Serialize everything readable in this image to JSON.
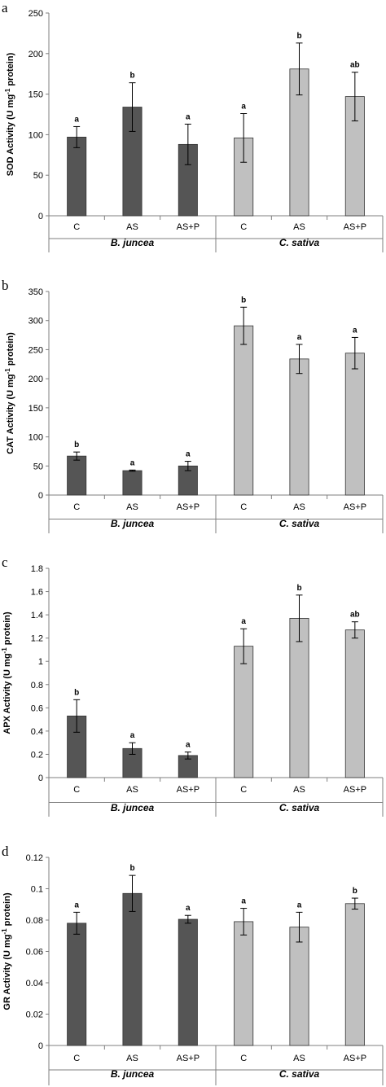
{
  "chart_data": [
    {
      "type": "bar",
      "panel": "a",
      "ylabel": "SOD Activity (U mg",
      "ylabel_sup": "-1",
      "ylabel_end": " protein)",
      "ylim": [
        0,
        250
      ],
      "yticks": [
        "0",
        "50",
        "100",
        "150",
        "200",
        "250"
      ],
      "groups": [
        "B. juncea",
        "C. sativa"
      ],
      "categories": [
        "C",
        "AS",
        "AS+P",
        "C",
        "AS",
        "AS+P"
      ],
      "values": [
        97,
        134,
        88,
        96,
        181,
        147
      ],
      "errors": [
        13,
        30,
        25,
        30,
        32,
        30
      ],
      "significance": [
        "a",
        "b",
        "a",
        "a",
        "b",
        "ab"
      ],
      "colors": [
        "#555555",
        "#555555",
        "#555555",
        "#c0c0c0",
        "#c0c0c0",
        "#c0c0c0"
      ]
    },
    {
      "type": "bar",
      "panel": "b",
      "ylabel": "CAT Activity (U mg",
      "ylabel_sup": "-1",
      "ylabel_end": " protein)",
      "ylim": [
        0,
        350
      ],
      "yticks": [
        "0",
        "50",
        "100",
        "150",
        "200",
        "250",
        "300",
        "350"
      ],
      "groups": [
        "B. juncea",
        "C. sativa"
      ],
      "categories": [
        "C",
        "AS",
        "AS+P",
        "C",
        "AS",
        "AS+P"
      ],
      "values": [
        67,
        42,
        50,
        291,
        234,
        244
      ],
      "errors": [
        7,
        1,
        8,
        32,
        25,
        27
      ],
      "significance": [
        "b",
        "a",
        "a",
        "b",
        "a",
        "a"
      ],
      "colors": [
        "#555555",
        "#555555",
        "#555555",
        "#c0c0c0",
        "#c0c0c0",
        "#c0c0c0"
      ]
    },
    {
      "type": "bar",
      "panel": "c",
      "ylabel": "APX Activity (U mg",
      "ylabel_sup": "-1",
      "ylabel_end": " protein)",
      "ylim": [
        0,
        1.8
      ],
      "yticks": [
        "0",
        "0.2",
        "0.4",
        "0.6",
        "0.8",
        "1",
        "1.2",
        "1.4",
        "1.6",
        "1.8"
      ],
      "groups": [
        "B. juncea",
        "C. sativa"
      ],
      "categories": [
        "C",
        "AS",
        "AS+P",
        "C",
        "AS",
        "AS+P"
      ],
      "values": [
        0.53,
        0.25,
        0.19,
        1.13,
        1.37,
        1.27
      ],
      "errors": [
        0.14,
        0.05,
        0.03,
        0.15,
        0.2,
        0.07
      ],
      "significance": [
        "b",
        "a",
        "a",
        "a",
        "b",
        "ab"
      ],
      "colors": [
        "#555555",
        "#555555",
        "#555555",
        "#c0c0c0",
        "#c0c0c0",
        "#c0c0c0"
      ]
    },
    {
      "type": "bar",
      "panel": "d",
      "ylabel": "GR Activity (U mg",
      "ylabel_sup": "-1",
      "ylabel_end": " protein)",
      "ylim": [
        0,
        0.12
      ],
      "yticks": [
        "0",
        "0.02",
        "0.04",
        "0.06",
        "0.08",
        "0.1",
        "0.12"
      ],
      "groups": [
        "B. juncea",
        "C. sativa"
      ],
      "categories": [
        "C",
        "AS",
        "AS+P",
        "C",
        "AS",
        "AS+P"
      ],
      "values": [
        0.078,
        0.097,
        0.0805,
        0.079,
        0.0755,
        0.0905
      ],
      "errors": [
        0.007,
        0.0115,
        0.0025,
        0.0085,
        0.0095,
        0.0035
      ],
      "significance": [
        "a",
        "b",
        "a",
        "a",
        "a",
        "b"
      ],
      "colors": [
        "#555555",
        "#555555",
        "#555555",
        "#c0c0c0",
        "#c0c0c0",
        "#c0c0c0"
      ]
    }
  ]
}
